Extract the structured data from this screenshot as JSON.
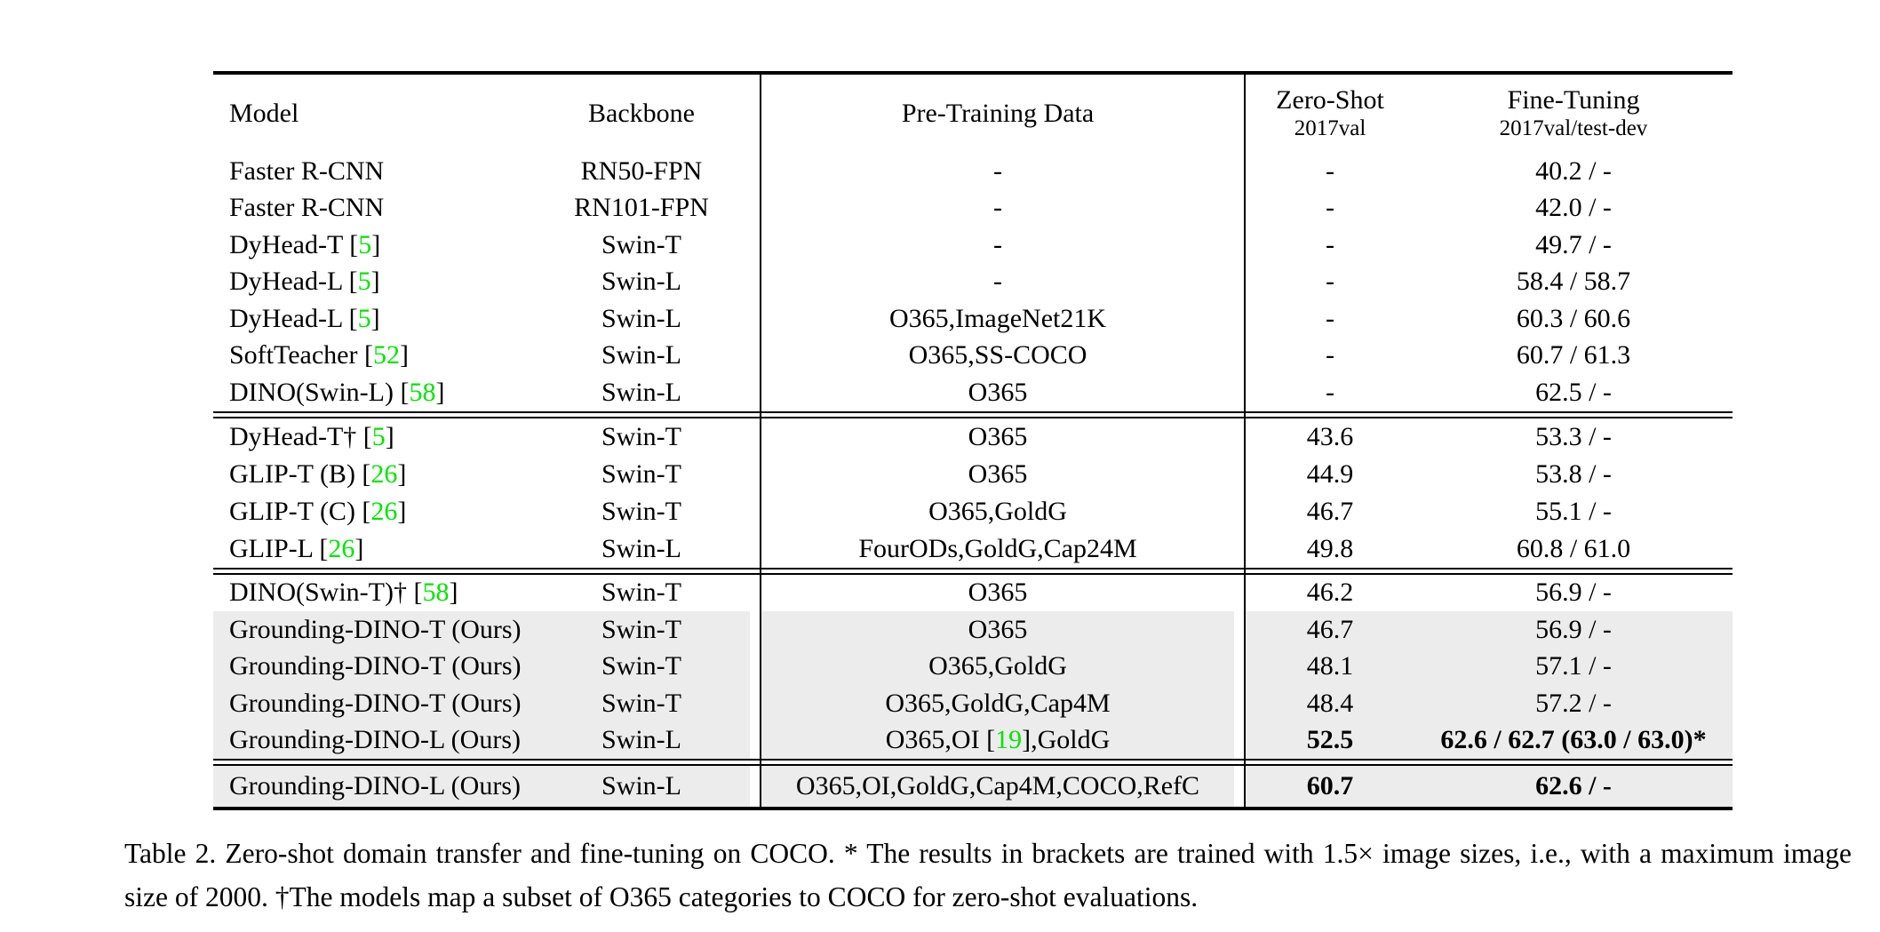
{
  "colors": {
    "citation_green": "#00e400",
    "row_highlight": "#ececec",
    "text": "#000000",
    "background": "#ffffff"
  },
  "table": {
    "header": {
      "model": "Model",
      "backbone": "Backbone",
      "pretraining": "Pre-Training Data",
      "zeroshot_title": "Zero-Shot",
      "zeroshot_sub": "2017val",
      "finetuning_title": "Fine-Tuning",
      "finetuning_sub": "2017val/test-dev"
    },
    "sections": [
      {
        "rows": [
          {
            "model": [
              {
                "t": "Faster R-CNN"
              }
            ],
            "backbone": "RN50-FPN",
            "pretrain": [
              {
                "t": "-"
              }
            ],
            "zeroshot": "-",
            "finetune": "40.2 / -"
          },
          {
            "model": [
              {
                "t": "Faster R-CNN"
              }
            ],
            "backbone": "RN101-FPN",
            "pretrain": [
              {
                "t": "-"
              }
            ],
            "zeroshot": "-",
            "finetune": "42.0 / -"
          },
          {
            "model": [
              {
                "t": "DyHead-T ["
              },
              {
                "t": "5",
                "green": true
              },
              {
                "t": "]"
              }
            ],
            "backbone": "Swin-T",
            "pretrain": [
              {
                "t": "-"
              }
            ],
            "zeroshot": "-",
            "finetune": "49.7 / -"
          },
          {
            "model": [
              {
                "t": "DyHead-L ["
              },
              {
                "t": "5",
                "green": true
              },
              {
                "t": "]"
              }
            ],
            "backbone": "Swin-L",
            "pretrain": [
              {
                "t": "-"
              }
            ],
            "zeroshot": "-",
            "finetune": "58.4 / 58.7"
          },
          {
            "model": [
              {
                "t": "DyHead-L ["
              },
              {
                "t": "5",
                "green": true
              },
              {
                "t": "]"
              }
            ],
            "backbone": "Swin-L",
            "pretrain": [
              {
                "t": "O365,ImageNet21K"
              }
            ],
            "zeroshot": "-",
            "finetune": "60.3 / 60.6"
          },
          {
            "model": [
              {
                "t": "SoftTeacher ["
              },
              {
                "t": "52",
                "green": true
              },
              {
                "t": "]"
              }
            ],
            "backbone": "Swin-L",
            "pretrain": [
              {
                "t": "O365,SS-COCO"
              }
            ],
            "zeroshot": "-",
            "finetune": "60.7 / 61.3"
          },
          {
            "model": [
              {
                "t": "DINO(Swin-L) ["
              },
              {
                "t": "58",
                "green": true
              },
              {
                "t": "]"
              }
            ],
            "backbone": "Swin-L",
            "pretrain": [
              {
                "t": "O365"
              }
            ],
            "zeroshot": "-",
            "finetune": "62.5 / -"
          }
        ]
      },
      {
        "rows": [
          {
            "model": [
              {
                "t": "DyHead-T† ["
              },
              {
                "t": "5",
                "green": true
              },
              {
                "t": "]"
              }
            ],
            "backbone": "Swin-T",
            "pretrain": [
              {
                "t": "O365"
              }
            ],
            "zeroshot": "43.6",
            "finetune": "53.3 / -"
          },
          {
            "model": [
              {
                "t": "GLIP-T (B) ["
              },
              {
                "t": "26",
                "green": true
              },
              {
                "t": "]"
              }
            ],
            "backbone": "Swin-T",
            "pretrain": [
              {
                "t": "O365"
              }
            ],
            "zeroshot": "44.9",
            "finetune": "53.8 / -"
          },
          {
            "model": [
              {
                "t": "GLIP-T (C) ["
              },
              {
                "t": "26",
                "green": true
              },
              {
                "t": "]"
              }
            ],
            "backbone": "Swin-T",
            "pretrain": [
              {
                "t": "O365,GoldG"
              }
            ],
            "zeroshot": "46.7",
            "finetune": "55.1 / -"
          },
          {
            "model": [
              {
                "t": "GLIP-L ["
              },
              {
                "t": "26",
                "green": true
              },
              {
                "t": "]"
              }
            ],
            "backbone": "Swin-L",
            "pretrain": [
              {
                "t": "FourODs,GoldG,Cap24M"
              }
            ],
            "zeroshot": "49.8",
            "finetune": "60.8 / 61.0"
          }
        ]
      },
      {
        "rows": [
          {
            "model": [
              {
                "t": "DINO(Swin-T)† ["
              },
              {
                "t": "58",
                "green": true
              },
              {
                "t": "]"
              }
            ],
            "backbone": "Swin-T",
            "pretrain": [
              {
                "t": "O365"
              }
            ],
            "zeroshot": "46.2",
            "finetune": "56.9 / -"
          },
          {
            "highlight": true,
            "model": [
              {
                "t": "Grounding-DINO-T (Ours)"
              }
            ],
            "backbone": "Swin-T",
            "pretrain": [
              {
                "t": "O365"
              }
            ],
            "zeroshot": "46.7",
            "finetune": "56.9 / -"
          },
          {
            "highlight": true,
            "model": [
              {
                "t": "Grounding-DINO-T (Ours)"
              }
            ],
            "backbone": "Swin-T",
            "pretrain": [
              {
                "t": "O365,GoldG"
              }
            ],
            "zeroshot": "48.1",
            "finetune": "57.1 / -"
          },
          {
            "highlight": true,
            "model": [
              {
                "t": "Grounding-DINO-T (Ours)"
              }
            ],
            "backbone": "Swin-T",
            "pretrain": [
              {
                "t": "O365,GoldG,Cap4M"
              }
            ],
            "zeroshot": "48.4",
            "finetune": "57.2 / -"
          },
          {
            "highlight": true,
            "bold_values": true,
            "model": [
              {
                "t": "Grounding-DINO-L (Ours)"
              }
            ],
            "backbone": "Swin-L",
            "pretrain": [
              {
                "t": "O365,OI ["
              },
              {
                "t": "19",
                "green": true
              },
              {
                "t": "],GoldG"
              }
            ],
            "zeroshot": "52.5",
            "finetune": "62.6 / 62.7 (63.0 / 63.0)*"
          }
        ]
      },
      {
        "rows": [
          {
            "highlight": true,
            "bold_values": true,
            "model": [
              {
                "t": "Grounding-DINO-L (Ours)"
              }
            ],
            "backbone": "Swin-L",
            "pretrain": [
              {
                "t": "O365,OI,GoldG,Cap4M,COCO,RefC"
              }
            ],
            "zeroshot": "60.7",
            "finetune": "62.6 / -"
          }
        ]
      }
    ]
  },
  "caption": {
    "text": "Table 2.  Zero-shot domain transfer and fine-tuning on COCO. * The results in brackets are trained with 1.5× image sizes, i.e., with a maximum image size of 2000. †The models map a subset of O365 categories to COCO for zero-shot evaluations."
  }
}
